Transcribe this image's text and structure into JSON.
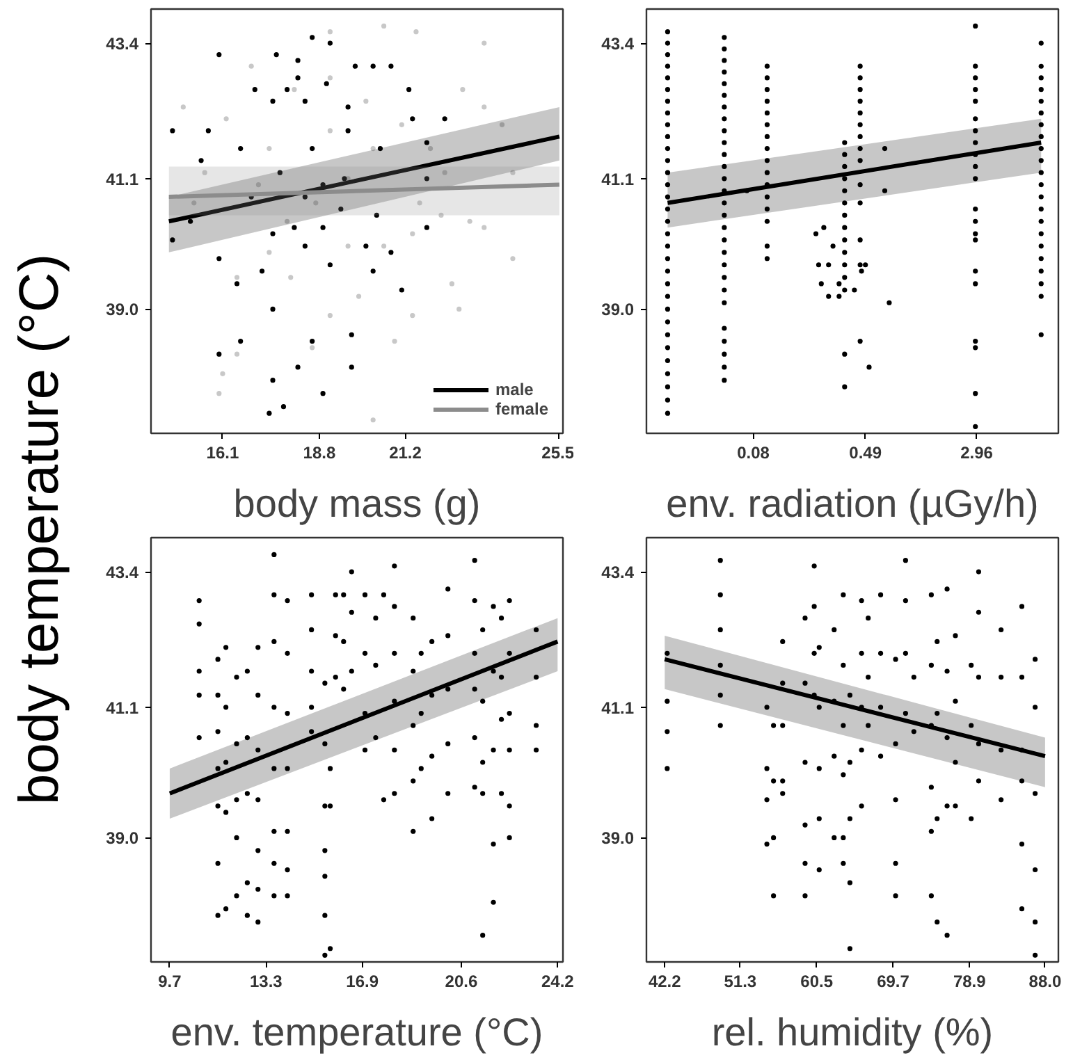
{
  "chart_data": [
    {
      "type": "scatter",
      "xlabel": "body mass (g)",
      "ylabel": "body temperature (°C)",
      "xlim": [
        14.1,
        25.6
      ],
      "xticks": [
        16.1,
        18.8,
        21.2,
        25.5
      ],
      "ylim": [
        37.1,
        44.0
      ],
      "yticks": [
        {
          "value": 39.0,
          "label": "39.0"
        },
        {
          "value": 41.1,
          "label": "41.1"
        },
        {
          "value": 43.4,
          "label": "43.4"
        }
      ],
      "log": "y",
      "legend": "bottom right",
      "series": [
        {
          "type": "scatter",
          "marker": "circle",
          "color": "#c8c8c8",
          "x": [
            15.0,
            16.2,
            16.9,
            19.1,
            20.6,
            21.5,
            23.4,
            22.8,
            23.4,
            23.9,
            24.2,
            24.2,
            22.5,
            22.7,
            21.4,
            20.9,
            20.3,
            19.9,
            19.1,
            18.6,
            18.0,
            17.4,
            16.5,
            16.1,
            16.0,
            16.5,
            19.6,
            21.6,
            22.2,
            23.0,
            23.4,
            21.9,
            21.1,
            20.1,
            19.1,
            18.1,
            17.4,
            17.1,
            15.6,
            15.3,
            19.6,
            20.6,
            21.4,
            22.3,
            18.7,
            17.9,
            19.1,
            20.3
          ],
          "values": [
            42.3,
            42.1,
            43.0,
            43.6,
            43.7,
            43.6,
            43.4,
            42.6,
            42.3,
            42.0,
            41.2,
            39.8,
            39.4,
            39.0,
            38.9,
            38.5,
            37.3,
            39.2,
            38.9,
            38.4,
            39.5,
            39.9,
            39.5,
            38.0,
            37.7,
            38.3,
            41.1,
            40.7,
            40.5,
            40.4,
            40.3,
            41.6,
            42.0,
            42.4,
            42.8,
            42.6,
            41.6,
            41.0,
            41.2,
            40.7,
            40.0,
            40.0,
            40.2,
            41.2,
            40.7,
            40.4,
            41.9,
            41.6
          ]
        },
        {
          "type": "scatter",
          "marker": "circle",
          "color": "#000000",
          "x": [
            14.7,
            16.0,
            15.7,
            14.7,
            15.5,
            16.6,
            15.2,
            16.0,
            16.5,
            17.2,
            17.5,
            16.0,
            16.6,
            17.5,
            17.4,
            17.8,
            18.2,
            18.6,
            18.9,
            19.7,
            19.7,
            18.6,
            19.1,
            17.6,
            18.2,
            17.0,
            17.5,
            17.9,
            18.2,
            19.0,
            19.8,
            20.3,
            20.8,
            21.3,
            21.4,
            22.3,
            21.8,
            21.8,
            21.8,
            21.1,
            20.8,
            20.3,
            19.1,
            18.4,
            17.5,
            16.9,
            17.7,
            18.6,
            19.6,
            20.5,
            19.5,
            18.4,
            19.4,
            20.4,
            18.9,
            20.1,
            19.6,
            18.4,
            18.1,
            18.9
          ],
          "values": [
            41.9,
            43.2,
            41.9,
            40.1,
            41.4,
            41.6,
            40.4,
            39.8,
            39.4,
            39.6,
            39.0,
            38.3,
            38.5,
            37.9,
            37.4,
            37.5,
            38.1,
            38.5,
            37.7,
            38.1,
            38.6,
            43.5,
            43.4,
            43.2,
            43.1,
            42.6,
            42.4,
            42.6,
            42.8,
            42.7,
            43.0,
            43.0,
            43.0,
            42.6,
            42.1,
            42.1,
            41.7,
            41.1,
            40.3,
            39.3,
            39.9,
            39.6,
            39.7,
            40.0,
            40.2,
            40.8,
            41.2,
            41.6,
            41.9,
            41.6,
            41.1,
            40.8,
            40.6,
            40.5,
            40.3,
            40.0,
            42.3,
            42.4,
            40.3,
            41.0
          ]
        },
        {
          "type": "line",
          "marker": "none",
          "name": "male",
          "color": "#000000",
          "x": [
            14.6,
            25.5
          ],
          "values": [
            40.4,
            41.8
          ],
          "lower": [
            39.9,
            41.4
          ],
          "upper": [
            40.8,
            42.3
          ]
        },
        {
          "type": "line",
          "marker": "none",
          "name": "female",
          "color": "#8c8c8c",
          "x": [
            14.6,
            25.5
          ],
          "values": [
            40.8,
            41.0
          ],
          "lower": [
            40.5,
            40.5
          ],
          "upper": [
            41.3,
            41.3
          ]
        }
      ]
    },
    {
      "type": "scatter",
      "xlabel": "env. radiation (µGy/h)",
      "xlim": [
        0.0142,
        11.1
      ],
      "xticks": [
        0.08,
        0.49,
        2.96
      ],
      "ylim": [
        37.1,
        44.0
      ],
      "yticks": [
        {
          "value": 39.0,
          "label": "39.0"
        },
        {
          "value": 41.1,
          "label": "41.1"
        },
        {
          "value": 43.4,
          "label": "43.4"
        }
      ],
      "log": "xy",
      "series": [
        {
          "marker": "circle",
          "color": "#000000",
          "x": [
            0.02,
            0.02,
            0.02,
            0.02,
            0.02,
            0.02,
            0.02,
            0.02,
            0.02,
            0.02,
            0.02,
            0.02,
            0.02,
            0.02,
            0.02,
            0.02,
            0.02,
            0.02,
            0.02,
            0.02,
            0.02,
            0.02,
            0.02,
            0.02,
            0.02,
            0.02,
            0.02,
            0.02,
            0.02,
            0.02,
            0.02,
            0.02,
            0.05,
            0.05,
            0.05,
            0.05,
            0.05,
            0.05,
            0.05,
            0.05,
            0.05,
            0.05,
            0.05,
            0.05,
            0.05,
            0.05,
            0.05,
            0.05,
            0.05,
            0.05,
            0.05,
            0.05,
            0.05,
            0.05,
            0.05,
            0.05,
            0.05,
            0.05,
            0.05,
            0.05,
            0.1,
            0.1,
            0.1,
            0.1,
            0.1,
            0.1,
            0.1,
            0.1,
            0.1,
            0.1,
            0.1,
            0.1,
            0.1,
            0.1,
            0.1,
            0.1,
            0.35,
            0.35,
            0.35,
            0.35,
            0.35,
            0.35,
            0.35,
            0.35,
            0.35,
            0.35,
            0.35,
            0.35,
            0.35,
            0.35,
            0.35,
            0.45,
            0.45,
            0.45,
            0.45,
            0.45,
            0.45,
            0.45,
            0.45,
            0.45,
            0.45,
            0.45,
            0.45,
            0.45,
            0.45,
            2.9,
            2.9,
            2.9,
            2.9,
            2.9,
            2.9,
            2.9,
            2.9,
            2.9,
            2.9,
            2.9,
            2.9,
            2.9,
            2.9,
            2.9,
            2.9,
            2.9,
            2.9,
            2.9,
            2.9,
            2.9,
            8.4,
            8.4,
            8.4,
            8.4,
            8.4,
            8.4,
            8.4,
            8.4,
            8.4,
            8.4,
            8.4,
            8.4,
            8.4,
            8.4,
            8.4,
            8.4,
            8.4,
            8.4,
            8.4,
            8.4,
            8.4,
            8.4,
            0.22,
            0.25,
            0.29,
            0.23,
            0.24,
            0.27,
            0.27,
            0.32,
            0.32,
            0.41,
            0.49,
            0.46,
            0.67,
            0.67,
            0.72,
            0.52,
            0.072
          ],
          "values": [
            43.6,
            43.4,
            43.2,
            43.0,
            42.8,
            42.6,
            42.4,
            42.2,
            42.0,
            41.8,
            41.6,
            41.4,
            41.2,
            41.0,
            40.8,
            40.6,
            40.4,
            40.2,
            40.0,
            39.8,
            39.6,
            39.4,
            39.2,
            39.0,
            38.8,
            38.6,
            38.4,
            38.2,
            38.0,
            37.8,
            37.6,
            37.4,
            43.5,
            43.3,
            43.1,
            42.9,
            42.7,
            42.5,
            42.3,
            42.1,
            41.9,
            41.7,
            41.5,
            41.3,
            41.1,
            40.9,
            40.7,
            40.5,
            40.3,
            40.1,
            39.9,
            39.7,
            39.5,
            39.3,
            39.1,
            38.7,
            38.5,
            38.3,
            38.1,
            37.9,
            43.0,
            42.8,
            42.6,
            42.4,
            42.2,
            42.0,
            41.8,
            41.6,
            41.4,
            41.2,
            41.0,
            40.8,
            40.6,
            40.4,
            40.0,
            39.8,
            41.7,
            41.5,
            41.3,
            41.1,
            40.9,
            40.7,
            40.5,
            40.3,
            40.1,
            39.9,
            39.7,
            39.5,
            39.3,
            38.3,
            37.8,
            43.0,
            42.8,
            42.6,
            42.4,
            42.2,
            42.0,
            41.8,
            41.6,
            41.4,
            41.0,
            40.7,
            40.1,
            39.7,
            38.5,
            43.7,
            43.0,
            42.8,
            42.6,
            42.4,
            42.1,
            41.9,
            41.7,
            41.5,
            41.3,
            41.1,
            40.6,
            40.4,
            40.2,
            40.1,
            39.6,
            39.4,
            38.5,
            38.4,
            37.7,
            37.2,
            43.4,
            43.0,
            42.8,
            42.6,
            42.4,
            42.2,
            42.0,
            41.8,
            41.6,
            41.4,
            41.2,
            41.0,
            40.8,
            40.6,
            40.4,
            40.2,
            40.0,
            39.8,
            39.6,
            39.4,
            39.2,
            38.6,
            40.2,
            40.3,
            40.0,
            39.7,
            39.4,
            39.7,
            39.2,
            39.4,
            39.2,
            39.3,
            39.7,
            39.6,
            41.6,
            40.9,
            39.1,
            38.1,
            40.9
          ]
        },
        {
          "type": "line",
          "marker": "none",
          "color": "#000000",
          "x": [
            0.02,
            8.4
          ],
          "values": [
            40.7,
            41.7
          ],
          "lower": [
            40.3,
            41.2
          ],
          "upper": [
            41.2,
            42.1
          ]
        }
      ]
    },
    {
      "type": "scatter",
      "xlabel": "env. temperature (°C)",
      "xlim": [
        9.0,
        24.4
      ],
      "xticks": [
        9.7,
        13.3,
        16.9,
        20.6,
        24.2
      ],
      "ylim": [
        37.1,
        44.0
      ],
      "yticks": [
        {
          "value": 39.0,
          "label": "39.0"
        },
        {
          "value": 41.1,
          "label": "41.1"
        },
        {
          "value": 43.4,
          "label": "43.4"
        }
      ],
      "log": "y",
      "series": [
        {
          "marker": "circle",
          "color": "#000000",
          "x": [
            10.8,
            10.8,
            10.8,
            10.8,
            10.8,
            11.5,
            11.5,
            11.5,
            11.5,
            11.5,
            11.5,
            11.5,
            11.8,
            11.8,
            11.8,
            11.8,
            11.8,
            12.2,
            12.2,
            12.2,
            12.2,
            12.2,
            12.6,
            12.6,
            12.6,
            12.6,
            12.6,
            13.0,
            13.0,
            13.0,
            13.0,
            13.0,
            13.0,
            13.0,
            13.6,
            13.6,
            13.6,
            13.6,
            13.6,
            13.6,
            13.6,
            13.6,
            14.1,
            14.1,
            14.1,
            14.1,
            14.1,
            14.1,
            14.1,
            15.0,
            15.0,
            15.0,
            15.0,
            15.0,
            15.5,
            15.5,
            15.5,
            15.5,
            15.5,
            15.5,
            15.5,
            15.7,
            15.7,
            15.7,
            15.9,
            15.9,
            15.9,
            16.2,
            16.2,
            16.2,
            16.5,
            16.5,
            16.5,
            17.0,
            17.0,
            17.0,
            17.0,
            17.4,
            17.4,
            17.4,
            17.7,
            17.7,
            18.1,
            18.1,
            18.1,
            18.1,
            18.1,
            18.1,
            18.8,
            18.8,
            18.8,
            18.8,
            18.8,
            19.1,
            19.1,
            19.1,
            19.5,
            19.5,
            19.5,
            19.5,
            20.1,
            20.1,
            20.1,
            20.1,
            20.1,
            21.1,
            21.1,
            21.1,
            21.1,
            21.1,
            21.1,
            21.4,
            21.4,
            21.4,
            21.4,
            21.4,
            21.8,
            21.8,
            21.8,
            21.8,
            21.8,
            22.1,
            22.1,
            22.1,
            22.1,
            22.4,
            22.4,
            22.4,
            22.4,
            22.4,
            22.4,
            23.4,
            23.4,
            23.4,
            23.4
          ],
          "values": [
            42.9,
            42.5,
            41.7,
            41.3,
            40.6,
            41.9,
            41.3,
            40.7,
            40.1,
            39.5,
            38.6,
            37.8,
            42.1,
            41.1,
            40.2,
            39.4,
            37.9,
            41.6,
            40.5,
            39.6,
            39.0,
            38.1,
            41.7,
            40.6,
            39.7,
            38.3,
            37.8,
            42.1,
            41.3,
            40.4,
            39.6,
            38.8,
            38.2,
            37.7,
            43.7,
            43.0,
            42.2,
            41.1,
            40.1,
            39.1,
            38.6,
            38.1,
            42.9,
            42.0,
            41.0,
            40.1,
            39.1,
            38.5,
            38.1,
            43.0,
            42.4,
            41.7,
            41.1,
            40.7,
            41.5,
            40.5,
            39.5,
            38.8,
            38.4,
            37.8,
            37.2,
            40.1,
            39.5,
            37.3,
            43.0,
            42.3,
            41.6,
            43.0,
            42.2,
            41.4,
            43.4,
            42.7,
            41.7,
            43.0,
            42.0,
            41.0,
            40.4,
            42.6,
            41.8,
            40.6,
            43.0,
            39.6,
            43.5,
            42.8,
            42.0,
            41.2,
            40.4,
            39.7,
            42.6,
            41.7,
            40.8,
            39.9,
            39.1,
            42.0,
            41.0,
            40.1,
            42.2,
            41.3,
            40.3,
            39.3,
            43.1,
            42.3,
            41.4,
            40.5,
            39.7,
            43.6,
            42.9,
            42.0,
            41.4,
            40.6,
            39.8,
            42.4,
            41.2,
            40.2,
            39.7,
            37.5,
            42.8,
            41.7,
            40.4,
            38.9,
            38.0,
            42.6,
            41.6,
            40.9,
            39.7,
            42.9,
            42.0,
            41.0,
            40.4,
            39.5,
            39.0,
            42.4,
            41.6,
            40.8,
            40.4
          ]
        },
        {
          "type": "line",
          "marker": "none",
          "color": "#000000",
          "x": [
            9.7,
            24.2
          ],
          "values": [
            39.7,
            42.2
          ],
          "lower": [
            39.3,
            41.7
          ],
          "upper": [
            40.1,
            42.6
          ]
        }
      ]
    },
    {
      "type": "scatter",
      "xlabel": "rel. humidity (%)",
      "xlim": [
        40.0,
        89.6
      ],
      "xticks": [
        42.2,
        51.3,
        60.5,
        69.7,
        78.9,
        {
          "value": 88.0,
          "label": "88.0"
        }
      ],
      "ylim": [
        37.1,
        44.0
      ],
      "yticks": [
        {
          "value": 39.0,
          "label": "39.0"
        },
        {
          "value": 41.1,
          "label": "41.1"
        },
        {
          "value": 43.4,
          "label": "43.4"
        }
      ],
      "log": "y",
      "series": [
        {
          "marker": "circle",
          "color": "#000000",
          "x": [
            42.5,
            42.5,
            42.5,
            42.5,
            48.9,
            48.9,
            48.9,
            48.9,
            48.9,
            48.9,
            54.5,
            54.5,
            54.5,
            54.5,
            55.3,
            55.3,
            55.3,
            55.3,
            56.4,
            56.4,
            56.4,
            56.4,
            56.4,
            59.1,
            59.1,
            59.1,
            59.1,
            59.1,
            59.1,
            60.2,
            60.2,
            60.2,
            60.2,
            60.8,
            60.8,
            60.8,
            60.8,
            60.8,
            62.6,
            62.6,
            62.6,
            62.6,
            63.7,
            63.7,
            63.7,
            63.7,
            63.7,
            63.7,
            64.5,
            64.5,
            64.5,
            64.5,
            64.5,
            65.9,
            65.9,
            65.9,
            65.9,
            65.9,
            66.7,
            66.7,
            66.7,
            68.2,
            68.2,
            68.2,
            68.2,
            70.0,
            70.0,
            70.0,
            70.0,
            70.0,
            71.2,
            71.2,
            71.2,
            71.2,
            72.2,
            72.2,
            74.3,
            74.3,
            74.3,
            74.3,
            74.3,
            74.3,
            75.0,
            75.0,
            75.0,
            75.0,
            76.2,
            76.2,
            76.2,
            76.2,
            76.2,
            77.2,
            77.2,
            77.2,
            77.2,
            79.1,
            79.1,
            79.1,
            80.0,
            80.0,
            80.0,
            80.0,
            80.0,
            82.7,
            82.7,
            82.7,
            82.7,
            85.2,
            85.2,
            85.2,
            85.2,
            85.2,
            85.2,
            86.8,
            86.8,
            86.8,
            86.8,
            86.8,
            86.8
          ],
          "values": [
            42.0,
            41.2,
            40.7,
            40.1,
            43.6,
            43.0,
            42.4,
            41.8,
            41.3,
            40.8,
            41.1,
            40.1,
            39.6,
            38.9,
            40.8,
            39.9,
            39.0,
            38.1,
            42.2,
            41.5,
            40.8,
            39.9,
            39.7,
            42.6,
            41.5,
            40.2,
            39.2,
            38.6,
            38.1,
            43.5,
            42.8,
            42.0,
            41.3,
            42.1,
            41.1,
            40.1,
            39.3,
            38.5,
            42.4,
            41.2,
            40.3,
            39.0,
            43.0,
            41.8,
            40.8,
            40.0,
            39.0,
            38.6,
            41.3,
            40.2,
            39.3,
            38.3,
            37.3,
            42.9,
            42.0,
            41.1,
            40.4,
            39.5,
            42.6,
            41.6,
            40.8,
            43.0,
            42.0,
            41.1,
            40.3,
            41.9,
            40.5,
            39.6,
            38.6,
            38.1,
            43.6,
            42.9,
            42.0,
            41.0,
            41.6,
            40.7,
            43.0,
            41.8,
            40.8,
            39.8,
            39.1,
            38.1,
            42.2,
            41.0,
            39.3,
            37.7,
            43.1,
            41.7,
            40.6,
            39.5,
            37.5,
            42.3,
            41.2,
            40.2,
            39.5,
            41.8,
            40.8,
            39.3,
            43.4,
            42.7,
            41.6,
            40.5,
            39.9,
            42.4,
            41.6,
            40.4,
            39.6,
            42.8,
            41.6,
            40.4,
            39.9,
            38.9,
            37.9,
            41.9,
            41.1,
            39.7,
            38.5,
            37.7,
            37.2
          ]
        },
        {
          "type": "line",
          "marker": "none",
          "color": "#000000",
          "x": [
            42.2,
            88.0
          ],
          "values": [
            41.9,
            40.3
          ],
          "lower": [
            41.4,
            39.8
          ],
          "upper": [
            42.3,
            40.6
          ]
        }
      ]
    }
  ]
}
